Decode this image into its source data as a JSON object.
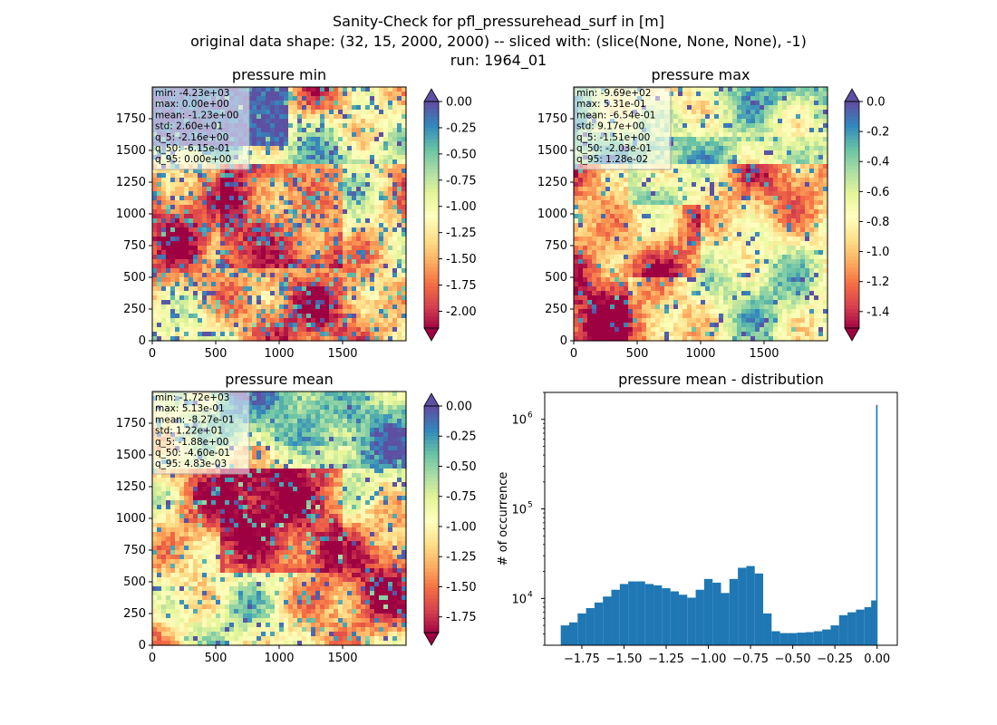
{
  "figure": {
    "suptitle_lines": [
      "Sanity-Check for pfl_pressurehead_surf in [m]",
      "original data shape: (32, 15, 2000, 2000) -- sliced with: (slice(None, None, None), -1)",
      "run: 1964_01"
    ]
  },
  "chart_data": [
    {
      "type": "heatmap",
      "title": "pressure min",
      "xlim": [
        0,
        2000
      ],
      "ylim": [
        0,
        2000
      ],
      "xticks": [
        0,
        500,
        1000,
        1500
      ],
      "yticks": [
        0,
        250,
        500,
        750,
        1000,
        1250,
        1500,
        1750
      ],
      "colormap": "Spectral",
      "colorbar": {
        "range": [
          -2.16,
          0.0
        ],
        "ticks": [
          "0.00",
          "-0.25",
          "-0.50",
          "-0.75",
          "-1.00",
          "-1.25",
          "-1.50",
          "-1.75",
          "-2.00"
        ],
        "tick_values": [
          0,
          -0.25,
          -0.5,
          -0.75,
          -1.0,
          -1.25,
          -1.5,
          -1.75,
          -2.0
        ],
        "extend": "both"
      },
      "stats": [
        "min: -4.23e+03",
        "max: 0.00e+00",
        "mean: -1.23e+00",
        "std: 2.60e+01",
        "q_5: -2.16e+00",
        "q_50: -6.15e-01",
        "q_95: 0.00e+00"
      ]
    },
    {
      "type": "heatmap",
      "title": "pressure max",
      "xlim": [
        0,
        2000
      ],
      "ylim": [
        0,
        2000
      ],
      "xticks": [
        0,
        500,
        1000,
        1500
      ],
      "yticks": [
        0,
        250,
        500,
        750,
        1000,
        1250,
        1500,
        1750
      ],
      "colormap": "Spectral",
      "colorbar": {
        "range": [
          -1.51,
          0.0
        ],
        "ticks": [
          "0.0",
          "-0.2",
          "-0.4",
          "-0.6",
          "-0.8",
          "-1.0",
          "-1.2",
          "-1.4"
        ],
        "tick_values": [
          0,
          -0.2,
          -0.4,
          -0.6,
          -0.8,
          -1.0,
          -1.2,
          -1.4
        ],
        "extend": "both"
      },
      "stats": [
        "min: -9.69e+02",
        "max: 5.31e-01",
        "mean: -6.54e-01",
        "std: 9.17e+00",
        "q_5: -1.51e+00",
        "q_50: -2.03e-01",
        "q_95: 1.28e-02"
      ]
    },
    {
      "type": "heatmap",
      "title": "pressure mean",
      "xlim": [
        0,
        2000
      ],
      "ylim": [
        0,
        2000
      ],
      "xticks": [
        0,
        500,
        1000,
        1500
      ],
      "yticks": [
        0,
        250,
        500,
        750,
        1000,
        1250,
        1500,
        1750
      ],
      "colormap": "Spectral",
      "colorbar": {
        "range": [
          -1.88,
          0.0
        ],
        "ticks": [
          "0.00",
          "-0.25",
          "-0.50",
          "-0.75",
          "-1.00",
          "-1.25",
          "-1.50",
          "-1.75"
        ],
        "tick_values": [
          0,
          -0.25,
          -0.5,
          -0.75,
          -1.0,
          -1.25,
          -1.5,
          -1.75
        ],
        "extend": "both"
      },
      "stats": [
        "min: -1.72e+03",
        "max: 5.13e-01",
        "mean: -8.27e-01",
        "std: 1.22e+01",
        "q_5: -1.88e+00",
        "q_50: -4.60e-01",
        "q_95: 4.83e-03"
      ]
    },
    {
      "type": "bar",
      "subtype": "histogram",
      "title": "pressure mean - distribution",
      "ylabel": "# of occurrence",
      "xlim": [
        -1.97,
        0.12
      ],
      "ylim": [
        3000,
        2000000
      ],
      "yscale": "log",
      "xticks": [
        -1.75,
        -1.5,
        -1.25,
        -1.0,
        -0.75,
        -0.5,
        -0.25,
        0.0
      ],
      "xtick_labels": [
        "−1.75",
        "−1.50",
        "−1.25",
        "−1.00",
        "−0.75",
        "−0.50",
        "−0.25",
        "0.00"
      ],
      "yticks": [
        10000,
        100000,
        1000000
      ],
      "ytick_labels": [
        "10^4",
        "10^5",
        "10^6"
      ],
      "bar_color": "#1f77b4",
      "bin_range": [
        -1.88,
        0.0
      ],
      "x": [
        -1.85,
        -1.8,
        -1.75,
        -1.7,
        -1.65,
        -1.6,
        -1.55,
        -1.5,
        -1.45,
        -1.4,
        -1.35,
        -1.3,
        -1.25,
        -1.2,
        -1.15,
        -1.1,
        -1.05,
        -1.0,
        -0.95,
        -0.9,
        -0.85,
        -0.8,
        -0.75,
        -0.7,
        -0.65,
        -0.6,
        -0.55,
        -0.5,
        -0.45,
        -0.4,
        -0.35,
        -0.3,
        -0.25,
        -0.2,
        -0.15,
        -0.1,
        -0.05,
        -0.02,
        0.0
      ],
      "y": [
        5000,
        5400,
        6800,
        7800,
        9000,
        10500,
        12500,
        14500,
        15500,
        15500,
        14500,
        14000,
        13000,
        12000,
        11000,
        10200,
        12500,
        16500,
        15000,
        11500,
        16500,
        22000,
        23000,
        19000,
        6800,
        4300,
        4100,
        4100,
        4150,
        4200,
        4300,
        4500,
        5000,
        6500,
        7000,
        7500,
        8000,
        9500,
        1450000
      ]
    }
  ]
}
